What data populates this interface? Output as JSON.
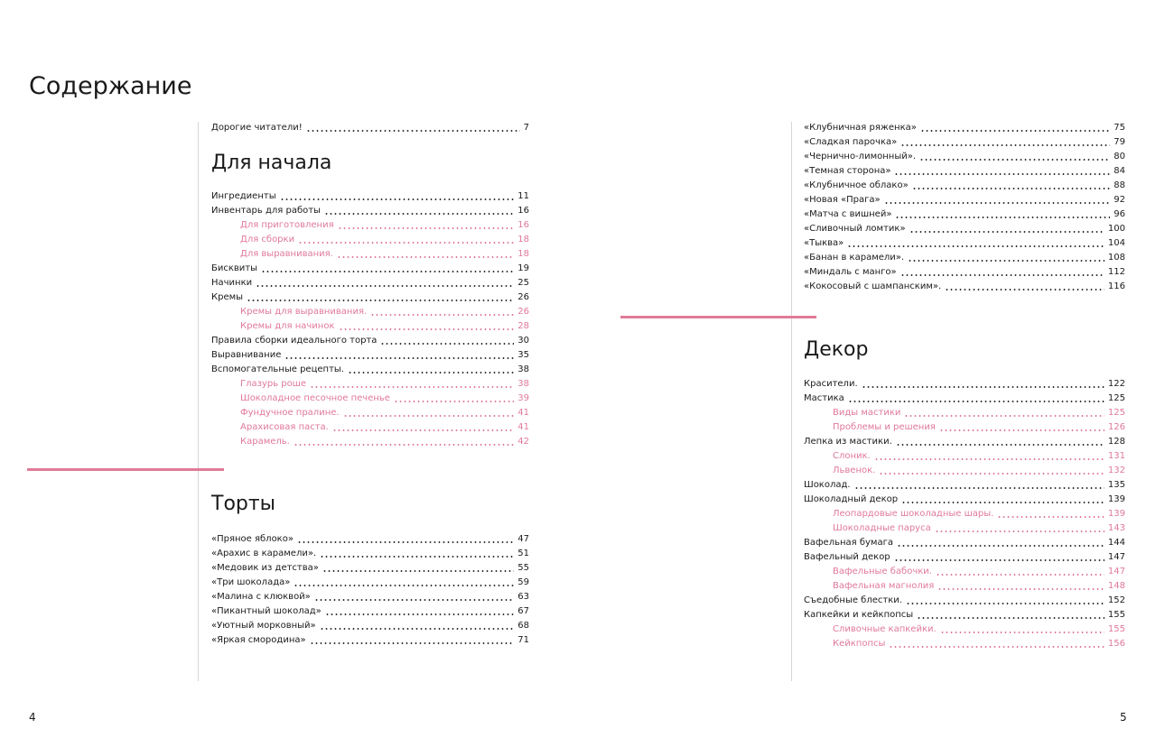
{
  "page_title": "Содержание",
  "page_numbers": {
    "left": "4",
    "right": "5"
  },
  "accent_color": "#e0799a",
  "intro": [
    {
      "label": "Дорогие читатели!",
      "page": "7"
    }
  ],
  "sections": {
    "start": {
      "heading": "Для начала",
      "items": [
        {
          "label": "Ингредиенты",
          "page": "11"
        },
        {
          "label": "Инвентарь для работы",
          "page": "16"
        },
        {
          "label": "Для приготовления",
          "page": "16",
          "sub": true
        },
        {
          "label": "Для сборки",
          "page": "18",
          "sub": true
        },
        {
          "label": "Для выравнивания.",
          "page": "18",
          "sub": true
        },
        {
          "label": "Бисквиты",
          "page": "19"
        },
        {
          "label": "Начинки",
          "page": "25"
        },
        {
          "label": "Кремы",
          "page": "26"
        },
        {
          "label": "Кремы для выравнивания.",
          "page": "26",
          "sub": true
        },
        {
          "label": "Кремы для начинок",
          "page": "28",
          "sub": true
        },
        {
          "label": "Правила сборки идеального торта",
          "page": "30"
        },
        {
          "label": "Выравнивание",
          "page": "35"
        },
        {
          "label": "Вспомогательные рецепты.",
          "page": "38"
        },
        {
          "label": "Глазурь роше",
          "page": "38",
          "sub": true
        },
        {
          "label": "Шоколадное песочное печенье",
          "page": "39",
          "sub": true
        },
        {
          "label": "Фундучное пралине.",
          "page": "41",
          "sub": true
        },
        {
          "label": "Арахисовая паста.",
          "page": "41",
          "sub": true
        },
        {
          "label": "Карамель.",
          "page": "42",
          "sub": true
        }
      ]
    },
    "cakes": {
      "heading": "Торты",
      "items": [
        {
          "label": "«Пряное яблоко»",
          "page": "47"
        },
        {
          "label": "«Арахис в карамели».",
          "page": "51"
        },
        {
          "label": "«Медовик из детства»",
          "page": "55"
        },
        {
          "label": "«Три шоколада»",
          "page": "59"
        },
        {
          "label": "«Малина с клюквой»",
          "page": "63"
        },
        {
          "label": "«Пикантный шоколад»",
          "page": "67"
        },
        {
          "label": "«Уютный морковный»",
          "page": "68"
        },
        {
          "label": "«Яркая смородина»",
          "page": "71"
        }
      ],
      "items_continued": [
        {
          "label": "«Клубничная ряженка»",
          "page": "75"
        },
        {
          "label": "«Сладкая парочка»",
          "page": "79"
        },
        {
          "label": "«Чернично-лимонный».",
          "page": "80"
        },
        {
          "label": "«Темная сторона»",
          "page": "84"
        },
        {
          "label": "«Клубничное облако»",
          "page": "88"
        },
        {
          "label": "«Новая «Прага»",
          "page": "92"
        },
        {
          "label": "«Матча с вишней»",
          "page": "96"
        },
        {
          "label": "«Сливочный ломтик»",
          "page": "100"
        },
        {
          "label": "«Тыква»",
          "page": "104"
        },
        {
          "label": "«Банан в карамели».",
          "page": "108"
        },
        {
          "label": "«Миндаль с манго»",
          "page": "112"
        },
        {
          "label": "«Кокосовый с шампанским».",
          "page": "116"
        }
      ]
    },
    "decor": {
      "heading": "Декор",
      "items": [
        {
          "label": "Красители.",
          "page": "122"
        },
        {
          "label": "Мастика",
          "page": "125"
        },
        {
          "label": "Виды мастики",
          "page": "125",
          "sub": true
        },
        {
          "label": "Проблемы и решения",
          "page": "126",
          "sub": true
        },
        {
          "label": "Лепка из мастики.",
          "page": "128"
        },
        {
          "label": "Слоник.",
          "page": "131",
          "sub": true
        },
        {
          "label": "Львенок.",
          "page": "132",
          "sub": true
        },
        {
          "label": "Шоколад.",
          "page": "135"
        },
        {
          "label": "Шоколадный декор",
          "page": "139"
        },
        {
          "label": "Леопардовые шоколадные шары.",
          "page": "139",
          "sub": true
        },
        {
          "label": "Шоколадные паруса",
          "page": "143",
          "sub": true
        },
        {
          "label": "Вафельная бумага",
          "page": "144"
        },
        {
          "label": "Вафельный декор",
          "page": "147"
        },
        {
          "label": "Вафельные бабочки.",
          "page": "147",
          "sub": true
        },
        {
          "label": "Вафельная магнолия",
          "page": "148",
          "sub": true
        },
        {
          "label": "Съедобные блестки.",
          "page": "152"
        },
        {
          "label": "Капкейки и кейкпопсы",
          "page": "155"
        },
        {
          "label": "Сливочные капкейки.",
          "page": "155",
          "sub": true
        },
        {
          "label": "Кейкпопсы",
          "page": "156",
          "sub": true
        }
      ]
    }
  }
}
